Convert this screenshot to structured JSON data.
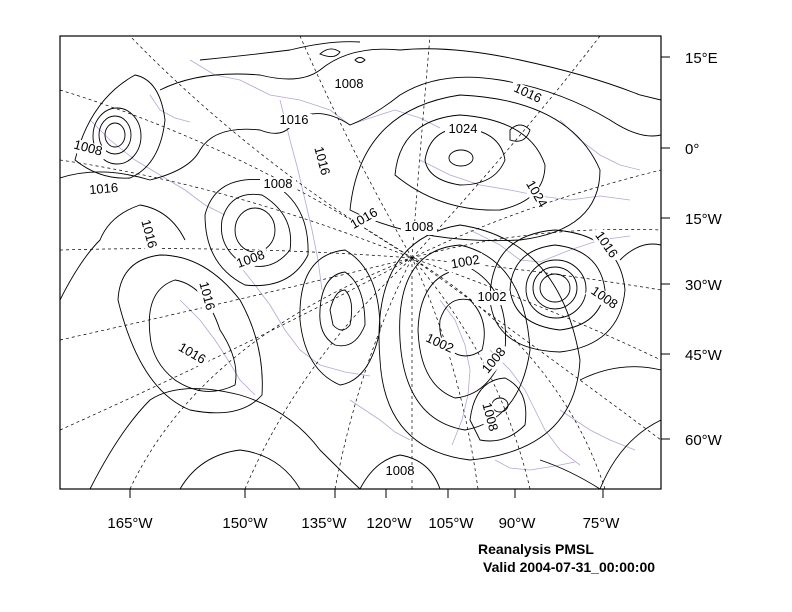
{
  "caption": {
    "title": "Reanalysis PMSL",
    "valid": "Valid 2004-07-31_00:00:00"
  },
  "axes": {
    "longitude_labels": [
      "165°W",
      "150°W",
      "135°W",
      "120°W",
      "105°W",
      "90°W",
      "75°W"
    ],
    "latitude_labels": [
      "15°E",
      "0°",
      "15°W",
      "30°W",
      "45°W",
      "60°W"
    ]
  },
  "contour_labels": [
    {
      "text": "1008"
    },
    {
      "text": "1016"
    },
    {
      "text": "1016"
    },
    {
      "text": "1024"
    },
    {
      "text": "1008"
    },
    {
      "text": "1016"
    },
    {
      "text": "1016"
    },
    {
      "text": "1016"
    },
    {
      "text": "1008"
    },
    {
      "text": "1016"
    },
    {
      "text": "1008"
    },
    {
      "text": "1024"
    },
    {
      "text": "1008"
    },
    {
      "text": "1016"
    },
    {
      "text": "1008"
    },
    {
      "text": "1016"
    },
    {
      "text": "1002"
    },
    {
      "text": "1002"
    },
    {
      "text": "1008"
    },
    {
      "text": "1016"
    },
    {
      "text": "1002"
    },
    {
      "text": "1008"
    },
    {
      "text": "1008"
    },
    {
      "text": "1008"
    }
  ],
  "style": {
    "contour_color": "#000000",
    "coastline_color": "#b8a6d6",
    "grid_color": "#000000"
  }
}
